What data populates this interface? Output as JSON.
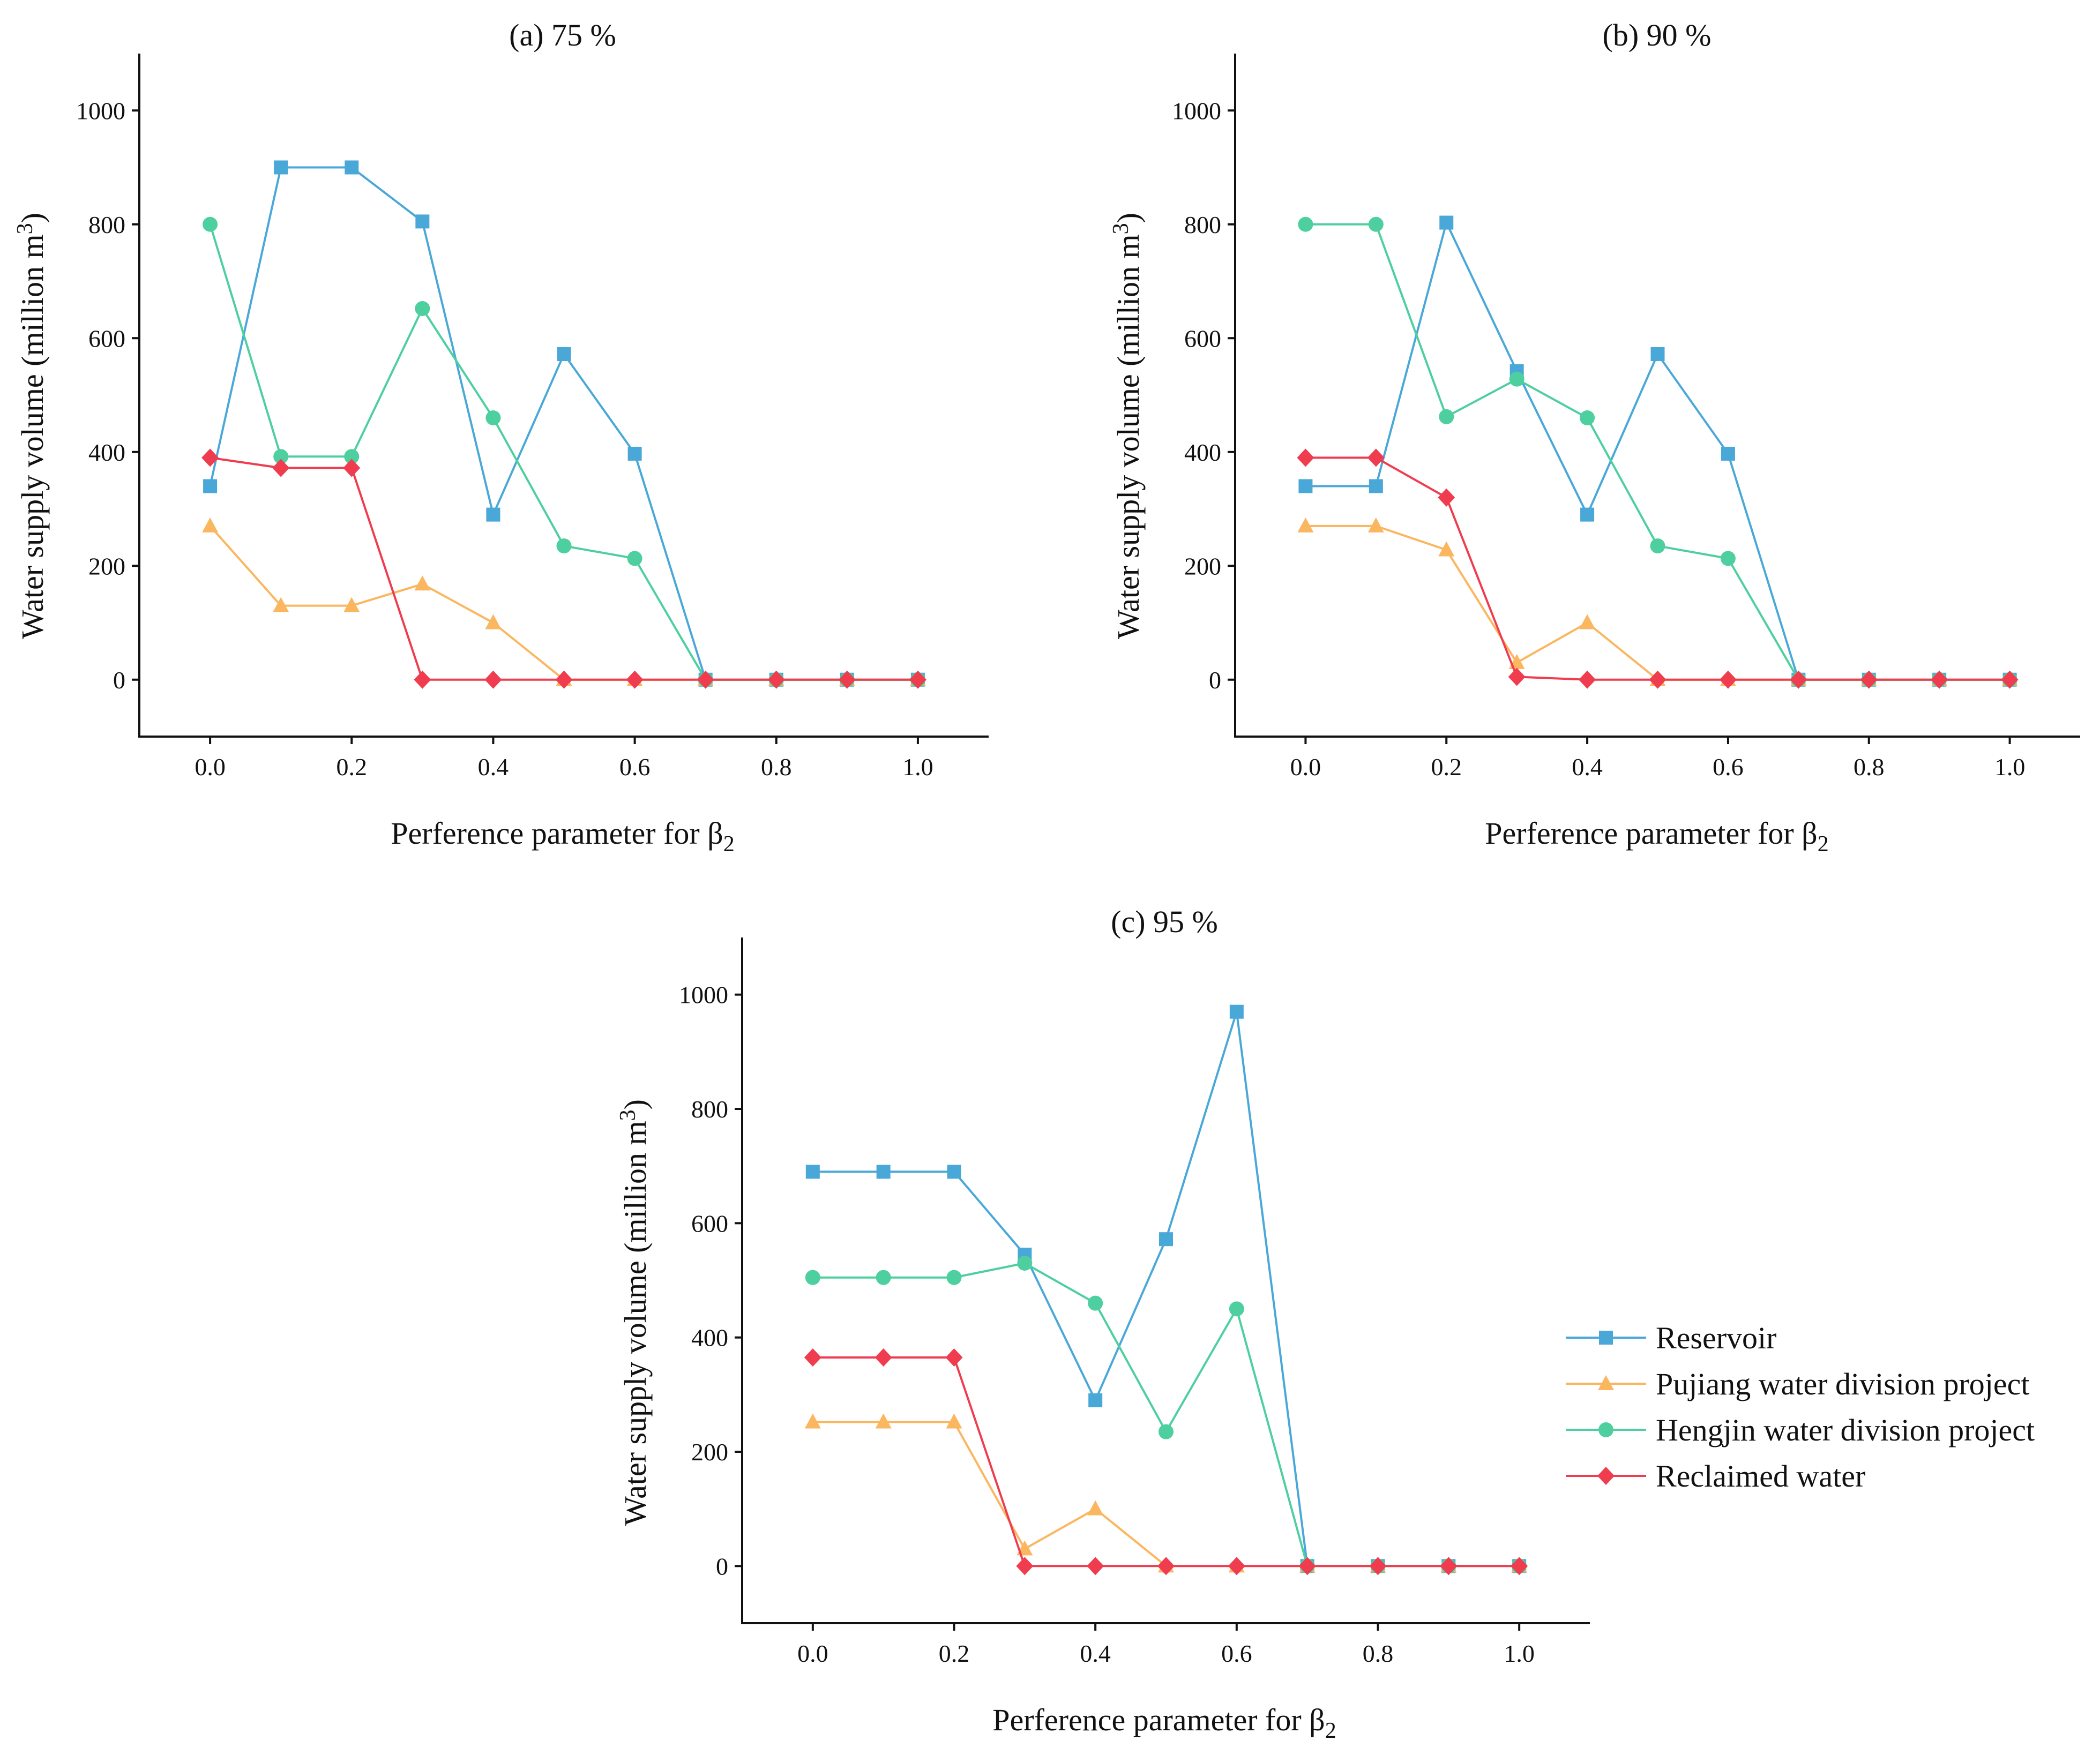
{
  "chart_data": [
    {
      "type": "line",
      "title": "(a) 75 %",
      "xlabel_text": "Perference parameter for β",
      "xlabel_sub": "2",
      "ylabel_text": "Water supply volume (million m",
      "ylabel_sup": "3",
      "ylabel_close": ")",
      "x": [
        0.0,
        0.1,
        0.2,
        0.3,
        0.4,
        0.5,
        0.6,
        0.7,
        0.8,
        0.9,
        1.0
      ],
      "xticks": [
        "0.0",
        "0.2",
        "0.4",
        "0.6",
        "0.8",
        "1.0"
      ],
      "xtick_values": [
        0.0,
        0.2,
        0.4,
        0.6,
        0.8,
        1.0
      ],
      "yticks": [
        "0",
        "200",
        "400",
        "600",
        "800",
        "1000"
      ],
      "ytick_values": [
        0,
        200,
        400,
        600,
        800,
        1000
      ],
      "xlim": [
        -0.1,
        1.1
      ],
      "ylim": [
        -100,
        1100
      ],
      "series": [
        {
          "name": "Reservoir",
          "values": [
            340,
            900,
            900,
            805,
            290,
            572,
            397,
            0,
            0,
            0,
            0
          ]
        },
        {
          "name": "Pujiang water division project",
          "values": [
            270,
            130,
            130,
            168,
            100,
            0,
            0,
            0,
            0,
            0,
            0
          ]
        },
        {
          "name": "Hengjin water division project",
          "values": [
            800,
            392,
            392,
            652,
            460,
            235,
            213,
            0,
            0,
            0,
            0
          ]
        },
        {
          "name": "Reclaimed water",
          "values": [
            390,
            372,
            372,
            0,
            0,
            0,
            0,
            0,
            0,
            0,
            0
          ]
        }
      ]
    },
    {
      "type": "line",
      "title": "(b) 90 %",
      "xlabel_text": "Perference parameter for β",
      "xlabel_sub": "2",
      "ylabel_text": "Water supply volume (million m",
      "ylabel_sup": "3",
      "ylabel_close": ")",
      "x": [
        0.0,
        0.1,
        0.2,
        0.3,
        0.4,
        0.5,
        0.6,
        0.7,
        0.8,
        0.9,
        1.0
      ],
      "xticks": [
        "0.0",
        "0.2",
        "0.4",
        "0.6",
        "0.8",
        "1.0"
      ],
      "xtick_values": [
        0.0,
        0.2,
        0.4,
        0.6,
        0.8,
        1.0
      ],
      "yticks": [
        "0",
        "200",
        "400",
        "600",
        "800",
        "1000"
      ],
      "ytick_values": [
        0,
        200,
        400,
        600,
        800,
        1000
      ],
      "xlim": [
        -0.1,
        1.1
      ],
      "ylim": [
        -100,
        1100
      ],
      "series": [
        {
          "name": "Reservoir",
          "values": [
            340,
            340,
            803,
            542,
            290,
            572,
            397,
            0,
            0,
            0,
            0
          ]
        },
        {
          "name": "Pujiang water division project",
          "values": [
            270,
            270,
            228,
            30,
            100,
            0,
            0,
            0,
            0,
            0,
            0
          ]
        },
        {
          "name": "Hengjin water division project",
          "values": [
            800,
            800,
            462,
            528,
            460,
            235,
            213,
            0,
            0,
            0,
            0
          ]
        },
        {
          "name": "Reclaimed water",
          "values": [
            390,
            390,
            320,
            5,
            0,
            0,
            0,
            0,
            0,
            0,
            0
          ]
        }
      ]
    },
    {
      "type": "line",
      "title": "(c) 95 %",
      "xlabel_text": "Perference parameter for β",
      "xlabel_sub": "2",
      "ylabel_text": "Water supply volume (million m",
      "ylabel_sup": "3",
      "ylabel_close": ")",
      "x": [
        0.0,
        0.1,
        0.2,
        0.3,
        0.4,
        0.5,
        0.6,
        0.7,
        0.8,
        0.9,
        1.0
      ],
      "xticks": [
        "0.0",
        "0.2",
        "0.4",
        "0.6",
        "0.8",
        "1.0"
      ],
      "xtick_values": [
        0.0,
        0.2,
        0.4,
        0.6,
        0.8,
        1.0
      ],
      "yticks": [
        "0",
        "200",
        "400",
        "600",
        "800",
        "1000"
      ],
      "ytick_values": [
        0,
        200,
        400,
        600,
        800,
        1000
      ],
      "xlim": [
        -0.1,
        1.1
      ],
      "ylim": [
        -100,
        1100
      ],
      "series": [
        {
          "name": "Reservoir",
          "values": [
            690,
            690,
            690,
            545,
            290,
            572,
            970,
            0,
            0,
            0,
            0
          ]
        },
        {
          "name": "Pujiang water division project",
          "values": [
            252,
            252,
            252,
            30,
            100,
            0,
            0,
            0,
            0,
            0,
            0
          ]
        },
        {
          "name": "Hengjin water division project",
          "values": [
            505,
            505,
            505,
            530,
            460,
            235,
            450,
            0,
            0,
            0,
            0
          ]
        },
        {
          "name": "Reclaimed water",
          "values": [
            365,
            365,
            365,
            0,
            0,
            0,
            0,
            0,
            0,
            0,
            0
          ]
        }
      ]
    }
  ],
  "legend": {
    "placement": "right of panel (c)",
    "entries": [
      {
        "name": "Reservoir",
        "color": "#4aa8d8",
        "marker": "square"
      },
      {
        "name": "Pujiang water division project",
        "color": "#fbb660",
        "marker": "triangle"
      },
      {
        "name": "Hengjin water division project",
        "color": "#4ecf9f",
        "marker": "circle"
      },
      {
        "name": "Reclaimed water",
        "color": "#f03c4f",
        "marker": "diamond"
      }
    ]
  }
}
